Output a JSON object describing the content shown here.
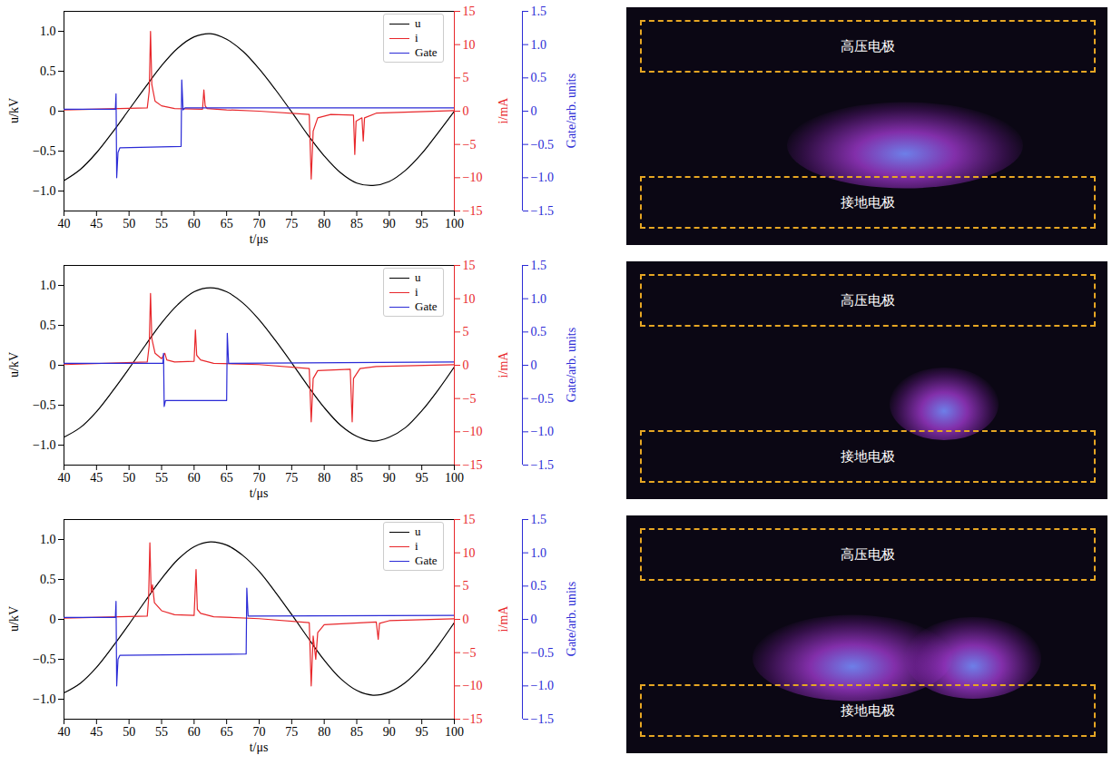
{
  "chart_data": [
    {
      "type": "line",
      "xlabel": "t/μs",
      "ylabel": "u/kV",
      "y2label": "i/mA",
      "y3label": "Gate/arb. units",
      "legend": "upper right",
      "xlim": [
        40,
        100
      ],
      "xticks": [
        40,
        45,
        50,
        55,
        60,
        65,
        70,
        75,
        80,
        85,
        90,
        95,
        100
      ],
      "ylim": [
        -1.25,
        1.25
      ],
      "yticks": [
        {
          "value": -1,
          "label": "−1.0"
        },
        {
          "value": -0.5,
          "label": "−0.5"
        },
        0,
        0.5,
        {
          "value": 1,
          "label": "1.0"
        }
      ],
      "y2lim": [
        -15,
        15
      ],
      "y2ticks": [
        {
          "value": -15,
          "label": "−15"
        },
        {
          "value": -10,
          "label": "−10"
        },
        {
          "value": -5,
          "label": "−5"
        },
        0,
        5,
        10,
        15
      ],
      "y3lim": [
        -1.5,
        1.5
      ],
      "y3ticks": [
        {
          "value": -1.5,
          "label": "−1.5"
        },
        {
          "value": -1,
          "label": "−1.0"
        },
        {
          "value": -0.5,
          "label": "−0.5"
        },
        0,
        0.5,
        {
          "value": 1,
          "label": "1.0"
        },
        1.5
      ],
      "series": [
        {
          "name": "u",
          "color": "#000000",
          "x": [
            40,
            42.5,
            45,
            47.5,
            50,
            52.5,
            55,
            57.5,
            60,
            62.5,
            65,
            67.5,
            70,
            72.5,
            75,
            77.5,
            80,
            82.5,
            85,
            87.5,
            90,
            92.5,
            95,
            97.5,
            100
          ],
          "values": [
            -0.87,
            -0.73,
            -0.52,
            -0.26,
            0.02,
            0.3,
            0.57,
            0.79,
            0.93,
            0.97,
            0.9,
            0.75,
            0.53,
            0.27,
            -0.01,
            -0.3,
            -0.56,
            -0.77,
            -0.9,
            -0.93,
            -0.88,
            -0.74,
            -0.53,
            -0.27,
            0.0
          ]
        },
        {
          "name": "i",
          "color": "#e8272b",
          "axis": "y2",
          "x": [
            40,
            52.8,
            53.1,
            53.3,
            53.5,
            54,
            55,
            57,
            61.3,
            61.5,
            61.7,
            62,
            65,
            70,
            77.7,
            78,
            78.3,
            79,
            81,
            84.5,
            84.7,
            84.9,
            85.8,
            86,
            86.2,
            88,
            100
          ],
          "values": [
            0.2,
            0.5,
            3,
            12,
            4,
            1.5,
            0.8,
            0.4,
            0.3,
            3.2,
            0.8,
            0.4,
            0.2,
            0,
            -0.5,
            -10.2,
            -3,
            -1,
            -0.5,
            -0.6,
            -6.5,
            -1.5,
            -1,
            -4.5,
            -1,
            -0.3,
            0.1
          ]
        },
        {
          "name": "Gate",
          "color": "#2b2bd6",
          "axis": "y3",
          "x": [
            40,
            47.9,
            48.0,
            48.1,
            48.3,
            48.6,
            58,
            58.1,
            58.3,
            58.6,
            100
          ],
          "values": [
            0.03,
            0.03,
            0.26,
            -1.0,
            -0.62,
            -0.55,
            -0.53,
            0.47,
            0.02,
            0.05,
            0.05
          ]
        }
      ]
    },
    {
      "type": "line",
      "xlabel": "t/μs",
      "ylabel": "u/kV",
      "y2label": "i/mA",
      "y3label": "Gate/arb. units",
      "legend": "upper right",
      "xlim": [
        40,
        100
      ],
      "xticks": [
        40,
        45,
        50,
        55,
        60,
        65,
        70,
        75,
        80,
        85,
        90,
        95,
        100
      ],
      "ylim": [
        -1.25,
        1.25
      ],
      "yticks": [
        {
          "value": -1,
          "label": "−1.0"
        },
        {
          "value": -0.5,
          "label": "−0.5"
        },
        0,
        0.5,
        {
          "value": 1,
          "label": "1.0"
        }
      ],
      "y2lim": [
        -15,
        15
      ],
      "y2ticks": [
        {
          "value": -15,
          "label": "−15"
        },
        {
          "value": -10,
          "label": "−10"
        },
        {
          "value": -5,
          "label": "−5"
        },
        0,
        5,
        10,
        15
      ],
      "y3lim": [
        -1.5,
        1.5
      ],
      "y3ticks": [
        {
          "value": -1.5,
          "label": "−1.5"
        },
        {
          "value": -1,
          "label": "−1.0"
        },
        {
          "value": -0.5,
          "label": "−0.5"
        },
        0,
        0.5,
        {
          "value": 1,
          "label": "1.0"
        },
        1.5
      ],
      "series": [
        {
          "name": "u",
          "color": "#000000",
          "x": [
            40,
            42.5,
            45,
            47.5,
            50,
            52.5,
            55,
            57.5,
            60,
            62.5,
            65,
            67.5,
            70,
            72.5,
            75,
            77.5,
            80,
            82.5,
            85,
            87.5,
            90,
            92.5,
            95,
            97.5,
            100
          ],
          "values": [
            -0.9,
            -0.78,
            -0.58,
            -0.32,
            -0.04,
            0.25,
            0.53,
            0.76,
            0.92,
            0.97,
            0.92,
            0.78,
            0.57,
            0.31,
            0.03,
            -0.26,
            -0.53,
            -0.75,
            -0.89,
            -0.95,
            -0.9,
            -0.78,
            -0.57,
            -0.31,
            -0.02
          ]
        },
        {
          "name": "i",
          "color": "#e8272b",
          "axis": "y2",
          "x": [
            40,
            52.8,
            53.1,
            53.3,
            53.5,
            54,
            55,
            55.5,
            55.8,
            57,
            60,
            60.2,
            60.4,
            61,
            63,
            70,
            77.7,
            78,
            78.3,
            79,
            84,
            84.3,
            84.5,
            85.5,
            88,
            100
          ],
          "values": [
            0.1,
            0.5,
            3,
            10.8,
            4,
            1.8,
            1.0,
            1.8,
            0.8,
            0.5,
            0.6,
            5.3,
            1.5,
            0.8,
            0.3,
            0.1,
            -0.5,
            -8.5,
            -2,
            -0.8,
            -0.6,
            -8.5,
            -2,
            -0.5,
            -0.2,
            0.1
          ]
        },
        {
          "name": "Gate",
          "color": "#2b2bd6",
          "axis": "y3",
          "x": [
            40,
            55.2,
            55.3,
            55.4,
            55.6,
            65,
            65.1,
            65.3,
            100
          ],
          "values": [
            0.03,
            0.03,
            0.18,
            -0.62,
            -0.53,
            -0.53,
            0.48,
            0.03,
            0.05
          ]
        }
      ]
    },
    {
      "type": "line",
      "xlabel": "t/μs",
      "ylabel": "u/kV",
      "y2label": "i/mA",
      "y3label": "Gate/arb. units",
      "legend": "upper right",
      "xlim": [
        40,
        100
      ],
      "xticks": [
        40,
        45,
        50,
        55,
        60,
        65,
        70,
        75,
        80,
        85,
        90,
        95,
        100
      ],
      "ylim": [
        -1.25,
        1.25
      ],
      "yticks": [
        {
          "value": -1,
          "label": "−1.0"
        },
        {
          "value": -0.5,
          "label": "−0.5"
        },
        0,
        0.5,
        {
          "value": 1,
          "label": "1.0"
        }
      ],
      "y2lim": [
        -15,
        15
      ],
      "y2ticks": [
        {
          "value": -15,
          "label": "−15"
        },
        {
          "value": -10,
          "label": "−10"
        },
        {
          "value": -5,
          "label": "−5"
        },
        0,
        5,
        10,
        15
      ],
      "y3lim": [
        -1.5,
        1.5
      ],
      "y3ticks": [
        {
          "value": -1.5,
          "label": "−1.5"
        },
        {
          "value": -1,
          "label": "−1.0"
        },
        {
          "value": -0.5,
          "label": "−0.5"
        },
        0,
        0.5,
        {
          "value": 1,
          "label": "1.0"
        },
        1.5
      ],
      "series": [
        {
          "name": "u",
          "color": "#000000",
          "x": [
            40,
            42.5,
            45,
            47.5,
            50,
            52.5,
            55,
            57.5,
            60,
            62.5,
            65,
            67.5,
            70,
            72.5,
            75,
            77.5,
            80,
            82.5,
            85,
            87.5,
            90,
            92.5,
            95,
            97.5,
            100
          ],
          "values": [
            -0.92,
            -0.8,
            -0.6,
            -0.34,
            -0.06,
            0.23,
            0.51,
            0.75,
            0.91,
            0.97,
            0.93,
            0.8,
            0.6,
            0.34,
            0.06,
            -0.23,
            -0.51,
            -0.74,
            -0.89,
            -0.95,
            -0.91,
            -0.79,
            -0.59,
            -0.33,
            -0.04
          ]
        },
        {
          "name": "i",
          "color": "#e8272b",
          "axis": "y2",
          "x": [
            40,
            52.8,
            53.0,
            53.2,
            53.4,
            53.6,
            53.9,
            55,
            57,
            60,
            60.3,
            60.5,
            61,
            63,
            70,
            77.7,
            78,
            78.3,
            78.7,
            79,
            80,
            88,
            88.3,
            88.5,
            90,
            100
          ],
          "values": [
            0.2,
            0.5,
            3,
            11.5,
            4,
            5.2,
            2.5,
            1.3,
            0.7,
            0.6,
            7.5,
            1.5,
            0.9,
            0.4,
            0.1,
            -0.5,
            -10.0,
            -2.5,
            -6.0,
            -2,
            -0.8,
            -0.4,
            -3,
            -0.6,
            -0.2,
            0.1
          ]
        },
        {
          "name": "Gate",
          "color": "#2b2bd6",
          "axis": "y3",
          "x": [
            40,
            47.9,
            48.0,
            48.1,
            48.3,
            48.6,
            68,
            68.1,
            68.3,
            100
          ],
          "values": [
            0.03,
            0.03,
            0.27,
            -1.0,
            -0.6,
            -0.54,
            -0.52,
            0.47,
            0.05,
            0.06
          ]
        }
      ]
    }
  ],
  "photos": [
    {
      "top_label": "高压电极",
      "bottom_label": "接地电极"
    },
    {
      "top_label": "高压电极",
      "bottom_label": "接地电极"
    },
    {
      "top_label": "高压电极",
      "bottom_label": "接地电极"
    }
  ]
}
